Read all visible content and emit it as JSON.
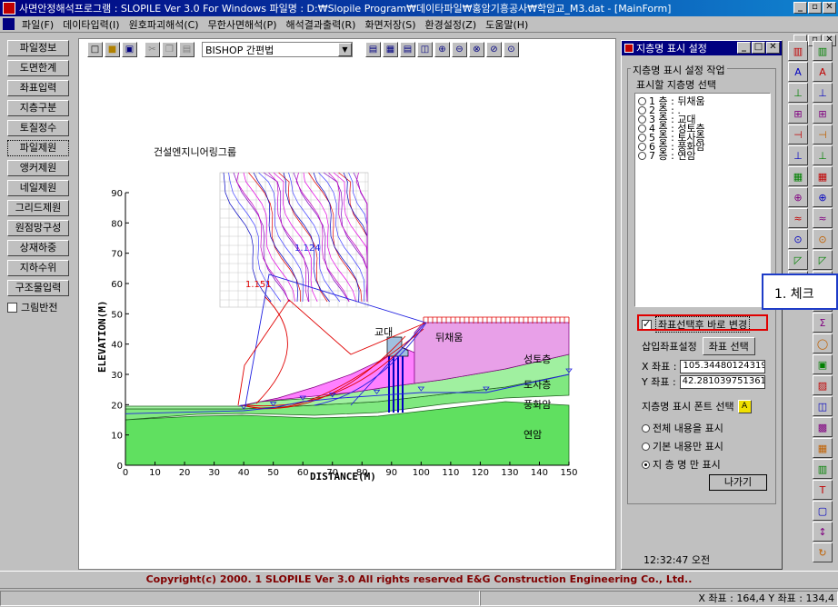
{
  "window": {
    "title": "사면안정해석프로그램 : SLOPILE Ver 3.0 For Windows 파일명 : D:₩Slopile Program₩데이타파일₩홍암기흥공사₩학암교_M3.dat - [MainForm]",
    "controls": [
      "_",
      "▫",
      "✕"
    ],
    "child_controls": [
      "_",
      "▫",
      "✕"
    ]
  },
  "menu": [
    "파일(F)",
    "데이타입력(I)",
    "원호파괴해석(C)",
    "무한사면해석(P)",
    "해석결과출력(R)",
    "화면저장(S)",
    "환경설정(Z)",
    "도움말(H)"
  ],
  "left_nav": {
    "buttons": [
      "파일정보",
      "도면한계",
      "좌표입력",
      "지층구분",
      "토질정수",
      "파일제원",
      "앵커제원",
      "네일제원",
      "그리드제원",
      "원점망구성",
      "상재하중",
      "지하수위",
      "구조물입력"
    ],
    "active_index": 5,
    "grid_toggle_label": "그림반전"
  },
  "toolbar": {
    "method_value": "BISHOP 간편법",
    "icons": [
      "new-icon",
      "open-icon",
      "save-icon",
      "cut-icon",
      "copy-icon",
      "paste-icon"
    ],
    "view_icons": [
      "view-1-icon",
      "view-2-icon",
      "view-3-icon",
      "view-4-icon",
      "zoom-in-icon",
      "zoom-out-icon",
      "zoom-window-icon",
      "zoom-prev-icon",
      "zoom-all-icon"
    ]
  },
  "chart": {
    "company_label": "건설엔지니어링그룹",
    "xlabel": "DISTANCE(M)",
    "ylabel": "ELEVATION(M)",
    "xticks": [
      "0",
      "10",
      "20",
      "30",
      "40",
      "50",
      "60",
      "70",
      "80",
      "90",
      "100",
      "110",
      "120",
      "130",
      "140",
      "150"
    ],
    "yticks": [
      "0",
      "10",
      "20",
      "30",
      "40",
      "50",
      "60",
      "70",
      "80",
      "90"
    ],
    "fs_values": [
      "1.124",
      "1.151"
    ],
    "layer_labels": [
      "교대",
      "뒤채움",
      "성토층",
      "토사층",
      "풍화암",
      "연암"
    ]
  },
  "chart_data": {
    "type": "scatter",
    "xlabel": "DISTANCE(M)",
    "ylabel": "ELEVATION(M)",
    "xlim": [
      0,
      150
    ],
    "ylim": [
      0,
      90
    ],
    "series": [
      {
        "name": "",
        "x": [
          0,
          40,
          50,
          60,
          70,
          85,
          100,
          122,
          150
        ],
        "y": [
          17,
          18,
          19,
          21,
          22,
          23,
          24,
          24,
          30
        ]
      }
    ]
  },
  "dialog": {
    "title": "지층명 표시 설정",
    "group_label": "지층명 표시 설정 작업",
    "list_label": "표시할 지층명 선택",
    "layers": [
      "1 층 : 뒤채움",
      "2 층 : .",
      "3 층 : 교대",
      "4 층 : 성토층",
      "5 층 : 토사층",
      "6 층 : 풍화암",
      "7 층 : 연암"
    ],
    "checkbox_label": "좌표선택후 바로 변경",
    "checkbox_checked": true,
    "insert_coord_label": "삽입좌표설정",
    "coord_select_button": "좌표 선택",
    "x_label": "X 좌표 :",
    "x_value": "105.34480124319",
    "y_label": "Y 좌표 :",
    "y_value": "42.281039751361",
    "font_select_label": "지층명 표시 폰트 선택",
    "display_options": [
      "전체 내용을 표시",
      "기본 내용만 표시",
      "지 층 명 만 표시"
    ],
    "display_selected": 2,
    "close_button": "나가기"
  },
  "clock": "12:32:47 오전",
  "callout": "1. 체크",
  "copyright": "Copyright(c) 2000. 1 SLOPILE Ver 3.0 All rights reserved E&G Construction Engineering Co., Ltd..",
  "status": {
    "coords": "X 좌표 : 164,4 Y 좌표 : 134,4"
  },
  "colors": {
    "titlebar": "#000080",
    "fill_backfill": "#ff80ff",
    "fill_embankment": "#e8a0e8",
    "fill_soil": "#a0f0a0",
    "fill_weathered": "#80e880",
    "fill_rock": "#60e060",
    "highlight": "#e00000",
    "callout_border": "#1e3cc8"
  }
}
